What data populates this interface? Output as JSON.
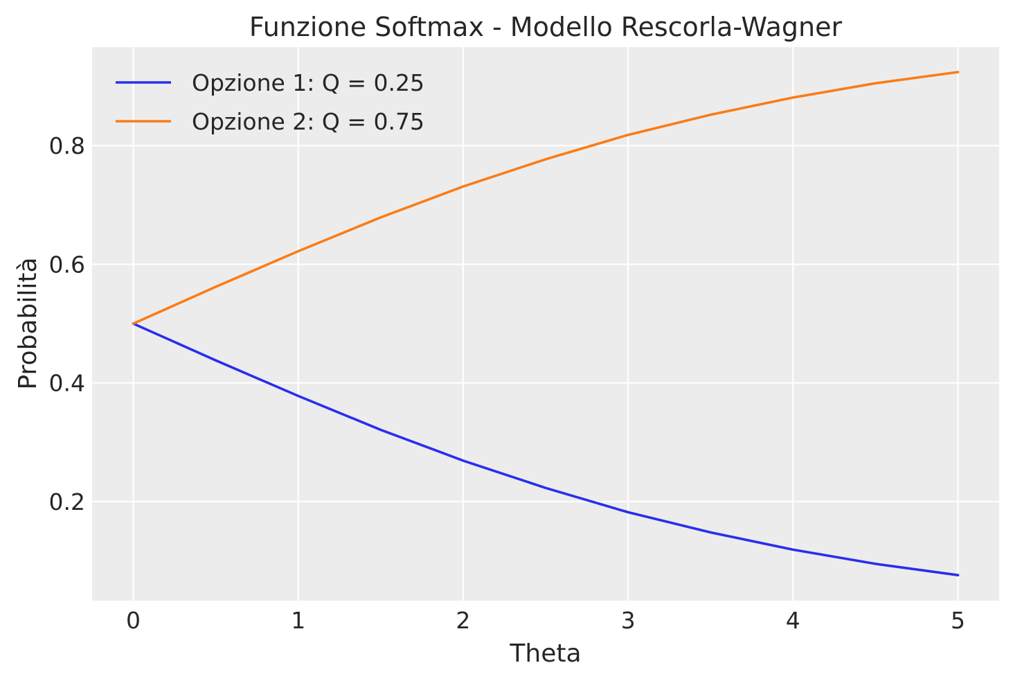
{
  "chart_data": {
    "type": "line",
    "title": "Funzione Softmax - Modello Rescorla-Wagner",
    "xlabel": "Theta",
    "ylabel": "Probabilità",
    "xlim": [
      -0.25,
      5.25
    ],
    "ylim": [
      0.033,
      0.966
    ],
    "xticks": [
      0,
      1,
      2,
      3,
      4,
      5
    ],
    "yticks": [
      0.2,
      0.4,
      0.6,
      0.8
    ],
    "xtick_labels": [
      "0",
      "1",
      "2",
      "3",
      "4",
      "5"
    ],
    "ytick_labels": [
      "0.2",
      "0.4",
      "0.6",
      "0.8"
    ],
    "grid": true,
    "legend_position": "top-left",
    "background_color": "#ececec",
    "grid_color": "#ffffff",
    "x": [
      0,
      0.5,
      1,
      1.5,
      2,
      2.5,
      3,
      3.5,
      4,
      4.5,
      5
    ],
    "series": [
      {
        "name": "Opzione 1: Q = 0.25",
        "color": "#2a2eec",
        "values": [
          0.5,
          0.438,
          0.378,
          0.321,
          0.269,
          0.223,
          0.182,
          0.148,
          0.119,
          0.095,
          0.076
        ]
      },
      {
        "name": "Opzione 2: Q = 0.75",
        "color": "#fa7c17",
        "values": [
          0.5,
          0.562,
          0.622,
          0.679,
          0.731,
          0.777,
          0.818,
          0.852,
          0.881,
          0.905,
          0.924
        ]
      }
    ]
  }
}
